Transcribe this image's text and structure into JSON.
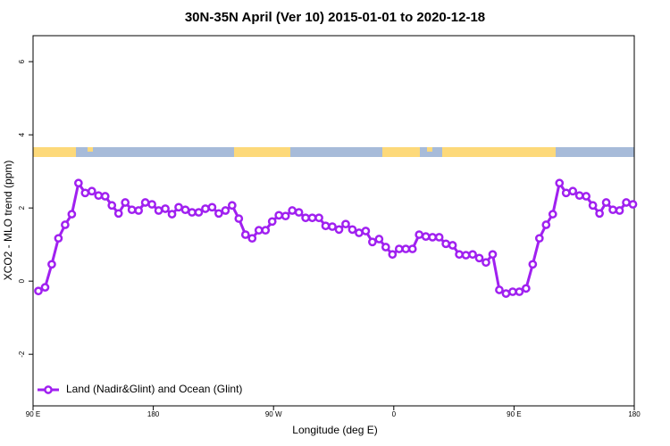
{
  "chart_data": {
    "type": "line",
    "title": "30N-35N April (Ver 10)   2015-01-01 to 2020-12-18",
    "x_label": "Longitude (deg E)",
    "y_label": "XCO2 - MLO trend (ppm)",
    "x": [
      94,
      99,
      104,
      109,
      114,
      119,
      124,
      129,
      134,
      139,
      144,
      149,
      154,
      159,
      164,
      169,
      174,
      179,
      184,
      189,
      194,
      199,
      204,
      209,
      214,
      219,
      224,
      229,
      234,
      239,
      244,
      249,
      254,
      259,
      264,
      269,
      274,
      279,
      284,
      289,
      294,
      299,
      304,
      309,
      314,
      319,
      324,
      329,
      334,
      339,
      344,
      349,
      354,
      359,
      364,
      369,
      374,
      379,
      384,
      389,
      394,
      399,
      404,
      409,
      414,
      419,
      424,
      429,
      434,
      439,
      444,
      449,
      454,
      459,
      464,
      469,
      474,
      479,
      484,
      489,
      494,
      499,
      504,
      509,
      514,
      519,
      524,
      529,
      534,
      539
    ],
    "series": [
      {
        "name": "Land (Nadir&Glint) and Ocean (Glint)",
        "color": "#a020f0",
        "values": [
          -0.27,
          -0.17,
          0.46,
          1.17,
          1.54,
          1.83,
          2.68,
          2.41,
          2.46,
          2.34,
          2.32,
          2.07,
          1.85,
          2.15,
          1.95,
          1.93,
          2.15,
          2.1,
          1.93,
          1.98,
          1.83,
          2.02,
          1.95,
          1.88,
          1.88,
          1.98,
          2.02,
          1.85,
          1.93,
          2.07,
          1.71,
          1.27,
          1.17,
          1.39,
          1.39,
          1.63,
          1.8,
          1.78,
          1.93,
          1.88,
          1.73,
          1.73,
          1.73,
          1.51,
          1.49,
          1.41,
          1.56,
          1.41,
          1.32,
          1.37,
          1.07,
          1.15,
          0.93,
          0.73,
          0.88,
          0.88,
          0.88,
          1.27,
          1.22,
          1.2,
          1.2,
          1.02,
          0.98,
          0.73,
          0.71,
          0.73,
          0.63,
          0.51,
          0.73,
          -0.24,
          -0.34,
          -0.29,
          -0.29,
          -0.2,
          0.46,
          1.17,
          1.54,
          1.83,
          2.68,
          2.41,
          2.46,
          2.34,
          2.32,
          2.07,
          1.85,
          2.15,
          1.95,
          1.93,
          2.15,
          2.1
        ]
      }
    ],
    "xlim": [
      90,
      540
    ],
    "xticks": [
      {
        "value": 90,
        "label": "90 E"
      },
      180,
      {
        "value": 270,
        "label": "90 W"
      },
      {
        "value": 360,
        "label": "0"
      },
      {
        "value": 450,
        "label": "90 E"
      },
      {
        "value": 540,
        "label": "180"
      }
    ],
    "ylim": [
      -3.41,
      6.71
    ],
    "yticks": [
      -2,
      0,
      2,
      4,
      6
    ],
    "legend_position": "bottom-left"
  }
}
